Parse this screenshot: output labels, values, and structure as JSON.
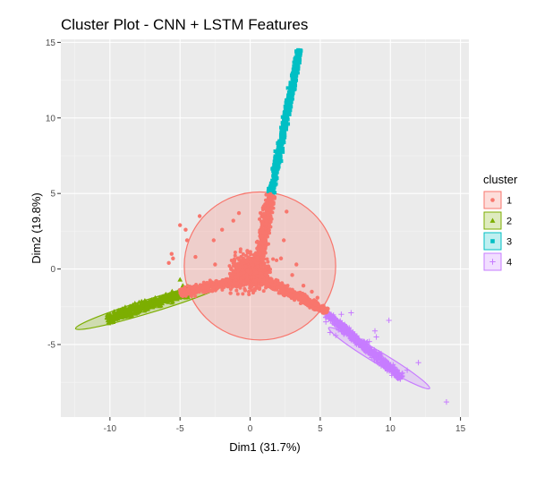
{
  "chart_data": {
    "type": "scatter",
    "title": "Cluster Plot - CNN + LSTM Features",
    "xlabel": "Dim1 (31.7%)",
    "ylabel": "Dim2 (19.8%)",
    "xlim": [
      -13.5,
      15.6
    ],
    "ylim": [
      -9.8,
      15.2
    ],
    "x_ticks": [
      -10,
      -5,
      0,
      5,
      10,
      15
    ],
    "y_ticks": [
      -5,
      0,
      5,
      10,
      15
    ],
    "grid": true,
    "legend": {
      "title": "cluster",
      "placement": "right",
      "entries": [
        "1",
        "2",
        "3",
        "4"
      ]
    },
    "series": [
      {
        "name": "1",
        "color": "#F8766D",
        "marker": "circle",
        "center": [
          0.1,
          -0.2
        ],
        "arms": [
          {
            "from": [
              0.5,
              0.0
            ],
            "to": [
              1.5,
              5.0
            ],
            "spread": 0.35
          },
          {
            "from": [
              0.5,
              -0.5
            ],
            "to": [
              -5.0,
              -1.6
            ],
            "spread": 0.3
          },
          {
            "from": [
              0.5,
              -0.5
            ],
            "to": [
              5.5,
              -2.8
            ],
            "spread": 0.3
          }
        ],
        "scattered_points": [
          [
            -5.0,
            2.9
          ],
          [
            -4.6,
            2.6
          ],
          [
            -4.5,
            1.9
          ],
          [
            -5.6,
            1.0
          ],
          [
            -5.5,
            0.7
          ],
          [
            -2.6,
            1.9
          ],
          [
            -3.6,
            3.5
          ],
          [
            -1.2,
            3.2
          ],
          [
            -0.8,
            3.7
          ],
          [
            -0.2,
            1.2
          ],
          [
            -2.0,
            2.6
          ],
          [
            -1.8,
            -0.8
          ],
          [
            2.4,
            1.9
          ],
          [
            2.6,
            3.8
          ],
          [
            2.2,
            0.7
          ],
          [
            3.3,
            0.3
          ],
          [
            3.0,
            -0.4
          ],
          [
            3.8,
            -1.1
          ],
          [
            4.4,
            -1.5
          ],
          [
            4.8,
            -1.9
          ],
          [
            -1.2,
            0.4
          ],
          [
            -2.5,
            0.3
          ],
          [
            -5.8,
            0.4
          ],
          [
            -3.9,
            0.8
          ],
          [
            -1.4,
            -1.6
          ]
        ],
        "ellipse": {
          "center": [
            0.7,
            0.2
          ],
          "rx": 5.4,
          "ry": 4.9,
          "angle": 0
        }
      },
      {
        "name": "2",
        "color": "#7CAE00",
        "marker": "triangle",
        "band": {
          "from": [
            -10.2,
            -3.3
          ],
          "to": [
            -4.2,
            -1.4
          ],
          "spread": 0.3
        },
        "scattered_points": [
          [
            -5.0,
            -0.7
          ],
          [
            -4.8,
            -1.1
          ]
        ],
        "ellipse": {
          "center": [
            -7.0,
            -2.4
          ],
          "rx": 5.7,
          "ry": 0.45,
          "angle": -17
        }
      },
      {
        "name": "3",
        "color": "#00BFC4",
        "marker": "square",
        "band": {
          "from": [
            1.5,
            5.0
          ],
          "to": [
            3.5,
            14.5
          ],
          "spread": 0.2
        },
        "scattered_points": [],
        "ellipse": null
      },
      {
        "name": "4",
        "color": "#C77CFF",
        "marker": "cross",
        "band": {
          "from": [
            5.5,
            -3.0
          ],
          "to": [
            10.8,
            -7.2
          ],
          "spread": 0.25
        },
        "scattered_points": [
          [
            5.4,
            -3.5
          ],
          [
            5.7,
            -4.2
          ],
          [
            6.1,
            -4.4
          ],
          [
            6.5,
            -3.0
          ],
          [
            7.2,
            -2.9
          ],
          [
            8.9,
            -4.1
          ],
          [
            9.0,
            -4.5
          ],
          [
            9.9,
            -3.4
          ],
          [
            11.2,
            -6.7
          ],
          [
            12.0,
            -6.2
          ],
          [
            14.0,
            -8.8
          ],
          [
            8.5,
            -4.8
          ]
        ],
        "ellipse": {
          "center": [
            9.2,
            -5.9
          ],
          "rx": 4.2,
          "ry": 0.4,
          "angle": 31
        }
      }
    ]
  }
}
